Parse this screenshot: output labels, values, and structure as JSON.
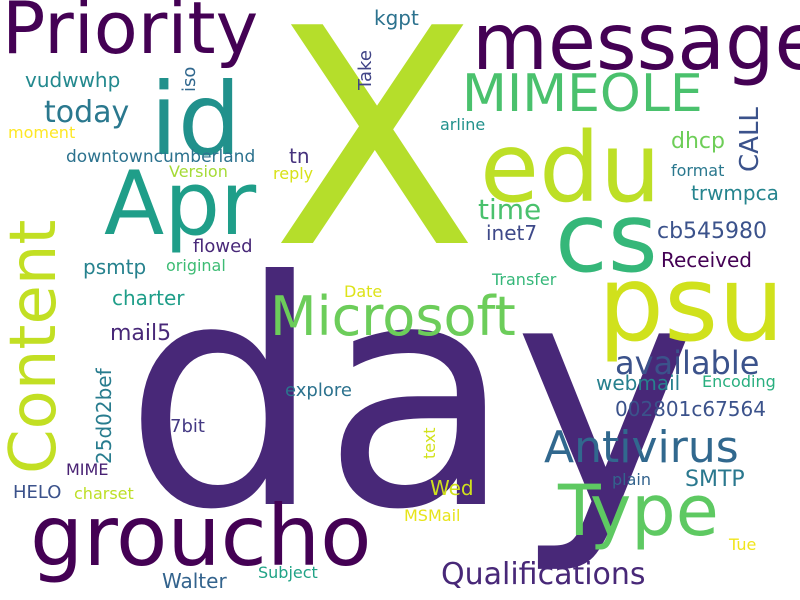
{
  "words": [
    {
      "text": "X",
      "color": "#b5de2b"
    },
    {
      "text": "day",
      "color": "#482878"
    },
    {
      "text": "message",
      "color": "#440154"
    },
    {
      "text": "Priority",
      "color": "#440154"
    },
    {
      "text": "id",
      "color": "#21918c"
    },
    {
      "text": "edu",
      "color": "#bddf26"
    },
    {
      "text": "Apr",
      "color": "#1f9e89"
    },
    {
      "text": "cs",
      "color": "#35b779"
    },
    {
      "text": "psu",
      "color": "#d0e11c"
    },
    {
      "text": "Content",
      "color": "#c2df23"
    },
    {
      "text": "MIMEOLE",
      "color": "#4ac16d"
    },
    {
      "text": "Microsoft",
      "color": "#6ccd5a"
    },
    {
      "text": "groucho",
      "color": "#440154"
    },
    {
      "text": "Type",
      "color": "#5ec962"
    },
    {
      "text": "Antivirus",
      "color": "#31688e"
    },
    {
      "text": "Qualifications",
      "color": "#482878"
    },
    {
      "text": "available",
      "color": "#3b528b"
    },
    {
      "text": "today",
      "color": "#2a788e"
    },
    {
      "text": "time",
      "color": "#4ac16d"
    },
    {
      "text": "CALL",
      "color": "#3b528b"
    },
    {
      "text": "kgpt",
      "color": "#2c728e"
    },
    {
      "text": "iso",
      "color": "#31688e"
    },
    {
      "text": "Take",
      "color": "#414487"
    },
    {
      "text": "vudwwhp",
      "color": "#23898e"
    },
    {
      "text": "moment",
      "color": "#fde725"
    },
    {
      "text": "downtowncumberland",
      "color": "#2c728e"
    },
    {
      "text": "tn",
      "color": "#46327e"
    },
    {
      "text": "Version",
      "color": "#a5db36"
    },
    {
      "text": "reply",
      "color": "#d8e219"
    },
    {
      "text": "arline",
      "color": "#21918c"
    },
    {
      "text": "dhcp",
      "color": "#6ece58"
    },
    {
      "text": "format",
      "color": "#2a788e"
    },
    {
      "text": "trwmpca",
      "color": "#25848e"
    },
    {
      "text": "inet7",
      "color": "#3e4989"
    },
    {
      "text": "cb545980",
      "color": "#3b528b"
    },
    {
      "text": "Received",
      "color": "#440154"
    },
    {
      "text": "flowed",
      "color": "#482878"
    },
    {
      "text": "psmtp",
      "color": "#26828e"
    },
    {
      "text": "original",
      "color": "#3dbc74"
    },
    {
      "text": "Transfer",
      "color": "#35b779"
    },
    {
      "text": "Date",
      "color": "#dde318"
    },
    {
      "text": "charter",
      "color": "#1f9e89"
    },
    {
      "text": "mail5",
      "color": "#482878"
    },
    {
      "text": "25d02bef",
      "color": "#287c8e"
    },
    {
      "text": "webmail",
      "color": "#27808e"
    },
    {
      "text": "Encoding",
      "color": "#29af7f"
    },
    {
      "text": "explore",
      "color": "#2c728e"
    },
    {
      "text": "002801c67564",
      "color": "#3b528b"
    },
    {
      "text": "7bit",
      "color": "#443983"
    },
    {
      "text": "text",
      "color": "#d2e21b"
    },
    {
      "text": "MIME",
      "color": "#482173"
    },
    {
      "text": "HELO",
      "color": "#3b528b"
    },
    {
      "text": "charset",
      "color": "#bddf26"
    },
    {
      "text": "Wed",
      "color": "#d0e11c"
    },
    {
      "text": "SMTP",
      "color": "#2a788e"
    },
    {
      "text": "plain",
      "color": "#33638d"
    },
    {
      "text": "MSMail",
      "color": "#e7e419"
    },
    {
      "text": "Walter",
      "color": "#33638d"
    },
    {
      "text": "Subject",
      "color": "#20a386"
    },
    {
      "text": "Tue",
      "color": "#f1e51d"
    }
  ]
}
